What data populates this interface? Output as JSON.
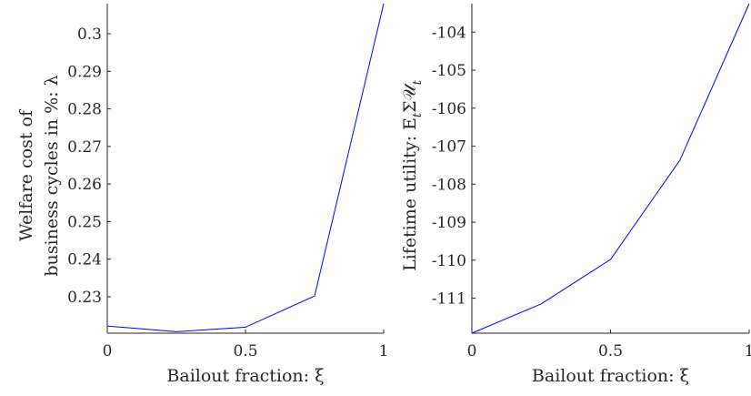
{
  "chart_data": [
    {
      "type": "line",
      "xlabel": "Bailout fraction: ξ",
      "ylabel_lines": [
        "Welfare cost of",
        "business cycles in %: λ"
      ],
      "x": [
        0,
        0.25,
        0.5,
        0.75,
        1
      ],
      "series": [
        {
          "values": [
            0.2222,
            0.2207,
            0.2219,
            0.2302,
            0.308
          ],
          "color": "#0000ff"
        }
      ],
      "xlim": [
        0,
        1
      ],
      "ylim": [
        0.2203,
        0.308
      ],
      "xticks": [
        0,
        0.5,
        1
      ],
      "xtick_labels": [
        "0",
        "0.5",
        "1"
      ],
      "yticks": [
        0.23,
        0.24,
        0.25,
        0.26,
        0.27,
        0.28,
        0.29,
        0.3
      ],
      "ytick_labels": [
        "0.23",
        "0.24",
        "0.25",
        "0.26",
        "0.27",
        "0.28",
        "0.29",
        "0.3"
      ],
      "grid": false
    },
    {
      "type": "line",
      "xlabel": "Bailout fraction: ξ",
      "ylabel_lines": [
        "Lifetime utility: E_tΣ𝒰_t"
      ],
      "x": [
        0,
        0.25,
        0.5,
        0.75,
        1
      ],
      "series": [
        {
          "values": [
            -111.92,
            -111.15,
            -109.98,
            -107.37,
            -103.25
          ],
          "color": "#0000ff"
        }
      ],
      "xlim": [
        0,
        1
      ],
      "ylim": [
        -111.92,
        -103.25
      ],
      "xticks": [
        0,
        0.5,
        1
      ],
      "xtick_labels": [
        "0",
        "0.5",
        "1"
      ],
      "yticks": [
        -111,
        -110,
        -109,
        -108,
        -107,
        -106,
        -105,
        -104
      ],
      "ytick_labels": [
        "-111",
        "-110",
        "-109",
        "-108",
        "-107",
        "-106",
        "-105",
        "-104"
      ],
      "grid": false
    }
  ]
}
